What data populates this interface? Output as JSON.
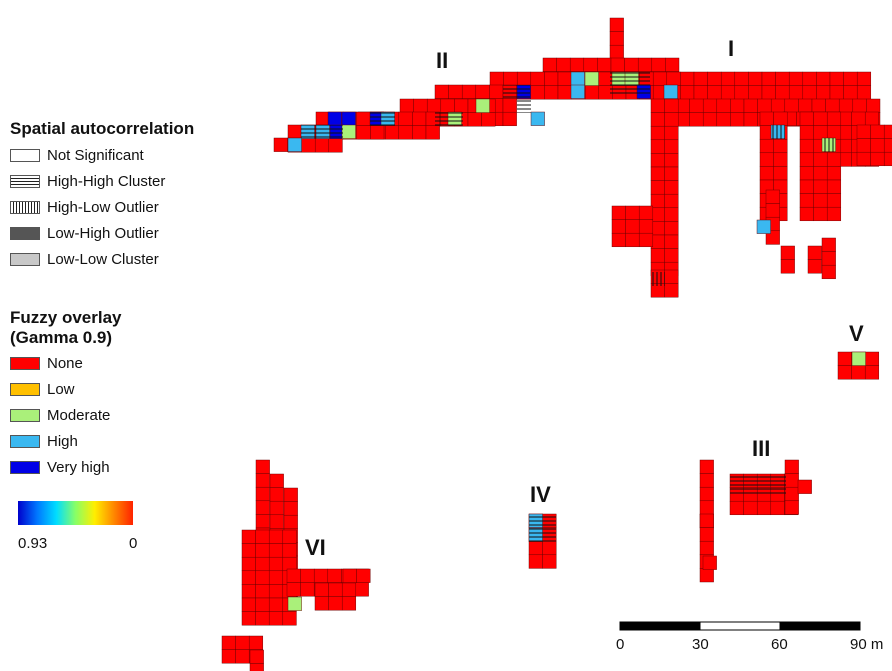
{
  "map": {
    "region_labels": [
      "I",
      "II",
      "III",
      "IV",
      "V",
      "VI"
    ]
  },
  "legend_autocorrelation": {
    "title": "Spatial autocorrelation",
    "items": [
      {
        "label": "Not Significant",
        "pattern": "none"
      },
      {
        "label": "High-High Cluster",
        "pattern": "horizontal-hatch"
      },
      {
        "label": "High-Low Outlier",
        "pattern": "vertical-hatch"
      },
      {
        "label": "Low-High Outlier",
        "pattern": "dark-gray",
        "color": "#555555"
      },
      {
        "label": "Low-Low Cluster",
        "pattern": "light-gray",
        "color": "#c8c8c8"
      }
    ]
  },
  "legend_fuzzy": {
    "title_line1": "Fuzzy overlay",
    "title_line2": "(Gamma 0.9)",
    "items": [
      {
        "label": "None",
        "color": "#ff0000"
      },
      {
        "label": "Low",
        "color": "#ffc000"
      },
      {
        "label": "Moderate",
        "color": "#aaf07a"
      },
      {
        "label": "High",
        "color": "#3ab8f0"
      },
      {
        "label": "Very high",
        "color": "#0000e6"
      }
    ]
  },
  "colorbar": {
    "min_label": "0.93",
    "max_label": "0"
  },
  "scale_bar": {
    "ticks": [
      "0",
      "30",
      "60",
      "90 m"
    ]
  }
}
